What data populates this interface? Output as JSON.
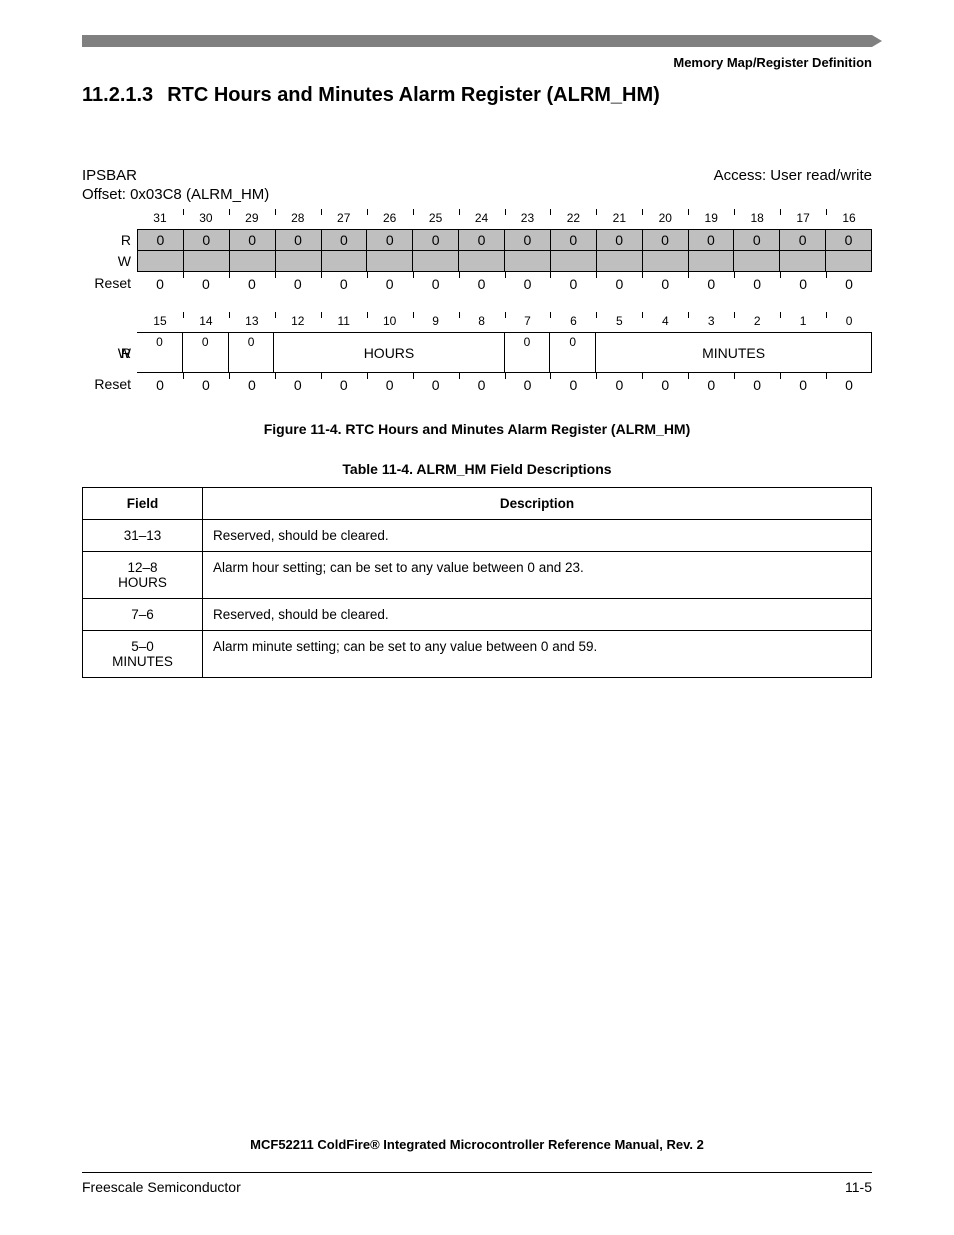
{
  "header_right": "Memory Map/Register Definition",
  "section": {
    "number": "11.2.1.3",
    "title": "RTC Hours and Minutes Alarm Register (ALRM_HM)"
  },
  "register": {
    "ipsbar": "IPSBAR",
    "offset": "Offset:  0x03C8 (ALRM_HM)",
    "access": "Access: User read/write",
    "row1_bits": [
      "31",
      "30",
      "29",
      "28",
      "27",
      "26",
      "25",
      "24",
      "23",
      "22",
      "21",
      "20",
      "19",
      "18",
      "17",
      "16"
    ],
    "row1_r": [
      "0",
      "0",
      "0",
      "0",
      "0",
      "0",
      "0",
      "0",
      "0",
      "0",
      "0",
      "0",
      "0",
      "0",
      "0",
      "0"
    ],
    "row1_reset": [
      "0",
      "0",
      "0",
      "0",
      "0",
      "0",
      "0",
      "0",
      "0",
      "0",
      "0",
      "0",
      "0",
      "0",
      "0",
      "0"
    ],
    "row2_bits": [
      "15",
      "14",
      "13",
      "12",
      "11",
      "10",
      "9",
      "8",
      "7",
      "6",
      "5",
      "4",
      "3",
      "2",
      "1",
      "0"
    ],
    "row2_r_left": [
      "0",
      "0",
      "0"
    ],
    "row2_hours_label": "HOURS",
    "row2_r_mid": [
      "0",
      "0"
    ],
    "row2_minutes_label": "MINUTES",
    "row2_reset": [
      "0",
      "0",
      "0",
      "0",
      "0",
      "0",
      "0",
      "0",
      "0",
      "0",
      "0",
      "0",
      "0",
      "0",
      "0",
      "0"
    ],
    "labels": {
      "r": "R",
      "w": "W",
      "reset": "Reset"
    }
  },
  "figure_caption": "Figure 11-4. RTC Hours and Minutes Alarm Register (ALRM_HM)",
  "table_caption": "Table 11-4. ALRM_HM Field Descriptions",
  "desc_table": {
    "head_field": "Field",
    "head_desc": "Description",
    "rows": [
      {
        "field": "31–13",
        "sub": "",
        "desc": "Reserved, should be cleared."
      },
      {
        "field": "12–8",
        "sub": "HOURS",
        "desc": "Alarm hour setting; can be set to any value between 0 and 23."
      },
      {
        "field": "7–6",
        "sub": "",
        "desc": "Reserved, should be cleared."
      },
      {
        "field": "5–0",
        "sub": "MINUTES",
        "desc": "Alarm minute setting; can be set to any value between 0 and 59."
      }
    ]
  },
  "footer": {
    "title": "MCF52211 ColdFire® Integrated Microcontroller Reference Manual, Rev. 2",
    "left": "Freescale Semiconductor",
    "right": "11-5"
  },
  "colors": {
    "bar": "#808080",
    "shade": "#bfbfbf",
    "text": "#000000",
    "bg": "#ffffff"
  }
}
